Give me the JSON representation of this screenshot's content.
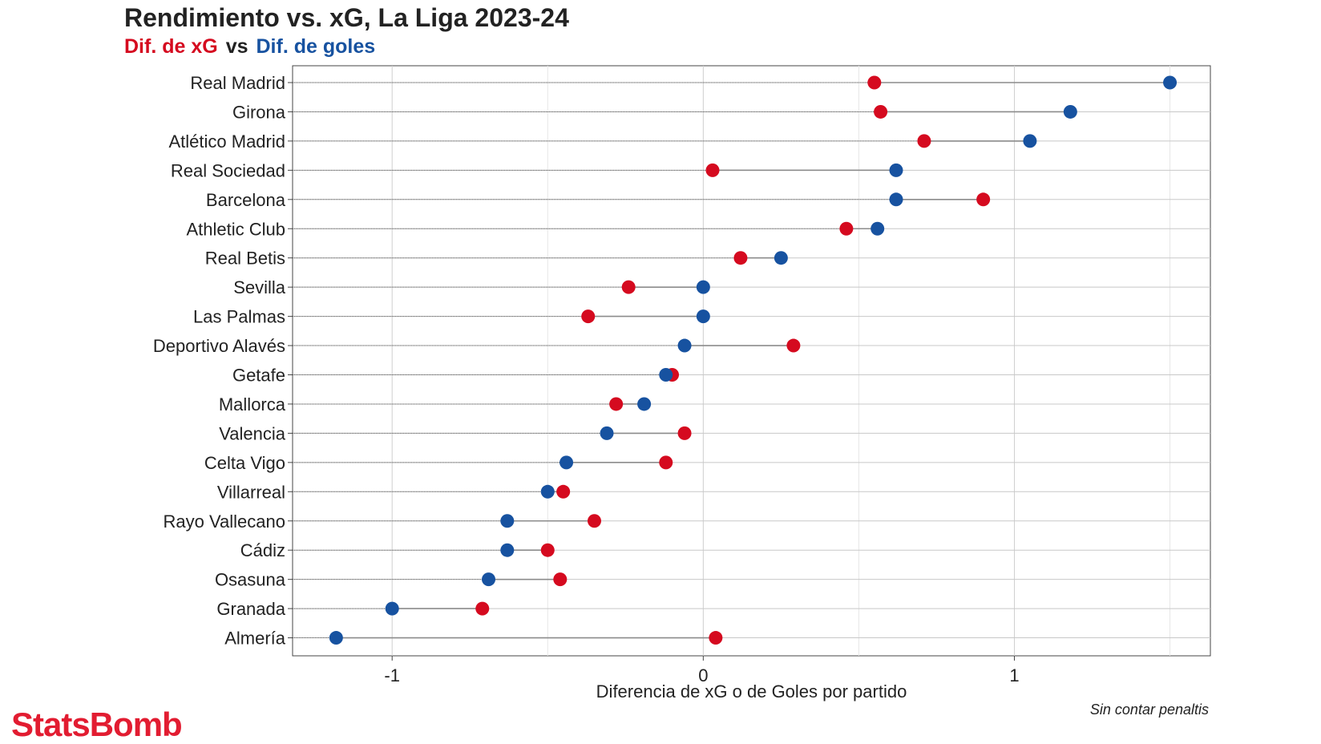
{
  "chart_data": {
    "type": "dumbbell",
    "title": "Rendimiento vs. xG, La Liga 2023-24",
    "subtitle": {
      "xg_label": "Dif. de xG",
      "vs_label": "vs",
      "goals_label": "Dif. de goles"
    },
    "xlabel": "Diferencia de xG o de Goles por partido",
    "note": "Sin contar penaltis",
    "xlim": [
      -1.32,
      1.63
    ],
    "x_ticks": [
      {
        "value": -1,
        "label": "-1"
      },
      {
        "value": 0,
        "label": "0"
      },
      {
        "value": 1,
        "label": "1"
      }
    ],
    "grid": true,
    "colors": {
      "xg": "#d50a1f",
      "goals": "#1752a0",
      "segment": "#8c8c8c"
    },
    "categories": [
      "Real Madrid",
      "Girona",
      "Atlético Madrid",
      "Real Sociedad",
      "Barcelona",
      "Athletic Club",
      "Real Betis",
      "Sevilla",
      "Las Palmas",
      "Deportivo Alavés",
      "Getafe",
      "Mallorca",
      "Valencia",
      "Celta Vigo",
      "Villarreal",
      "Rayo Vallecano",
      "Cádiz",
      "Osasuna",
      "Granada",
      "Almería"
    ],
    "series": [
      {
        "key": "xg",
        "values": [
          0.55,
          0.57,
          0.71,
          0.03,
          0.9,
          0.46,
          0.12,
          -0.24,
          -0.37,
          0.29,
          -0.1,
          -0.28,
          -0.06,
          -0.12,
          -0.45,
          -0.35,
          -0.5,
          -0.46,
          -0.71,
          0.04
        ]
      },
      {
        "key": "goals",
        "values": [
          1.5,
          1.18,
          1.05,
          0.62,
          0.62,
          0.56,
          0.25,
          0.0,
          0.0,
          -0.06,
          -0.12,
          -0.19,
          -0.31,
          -0.44,
          -0.5,
          -0.63,
          -0.63,
          -0.69,
          -1.0,
          -1.18
        ]
      }
    ]
  },
  "brand": {
    "logo_text": "StatsBomb",
    "color": "#e21c31"
  }
}
